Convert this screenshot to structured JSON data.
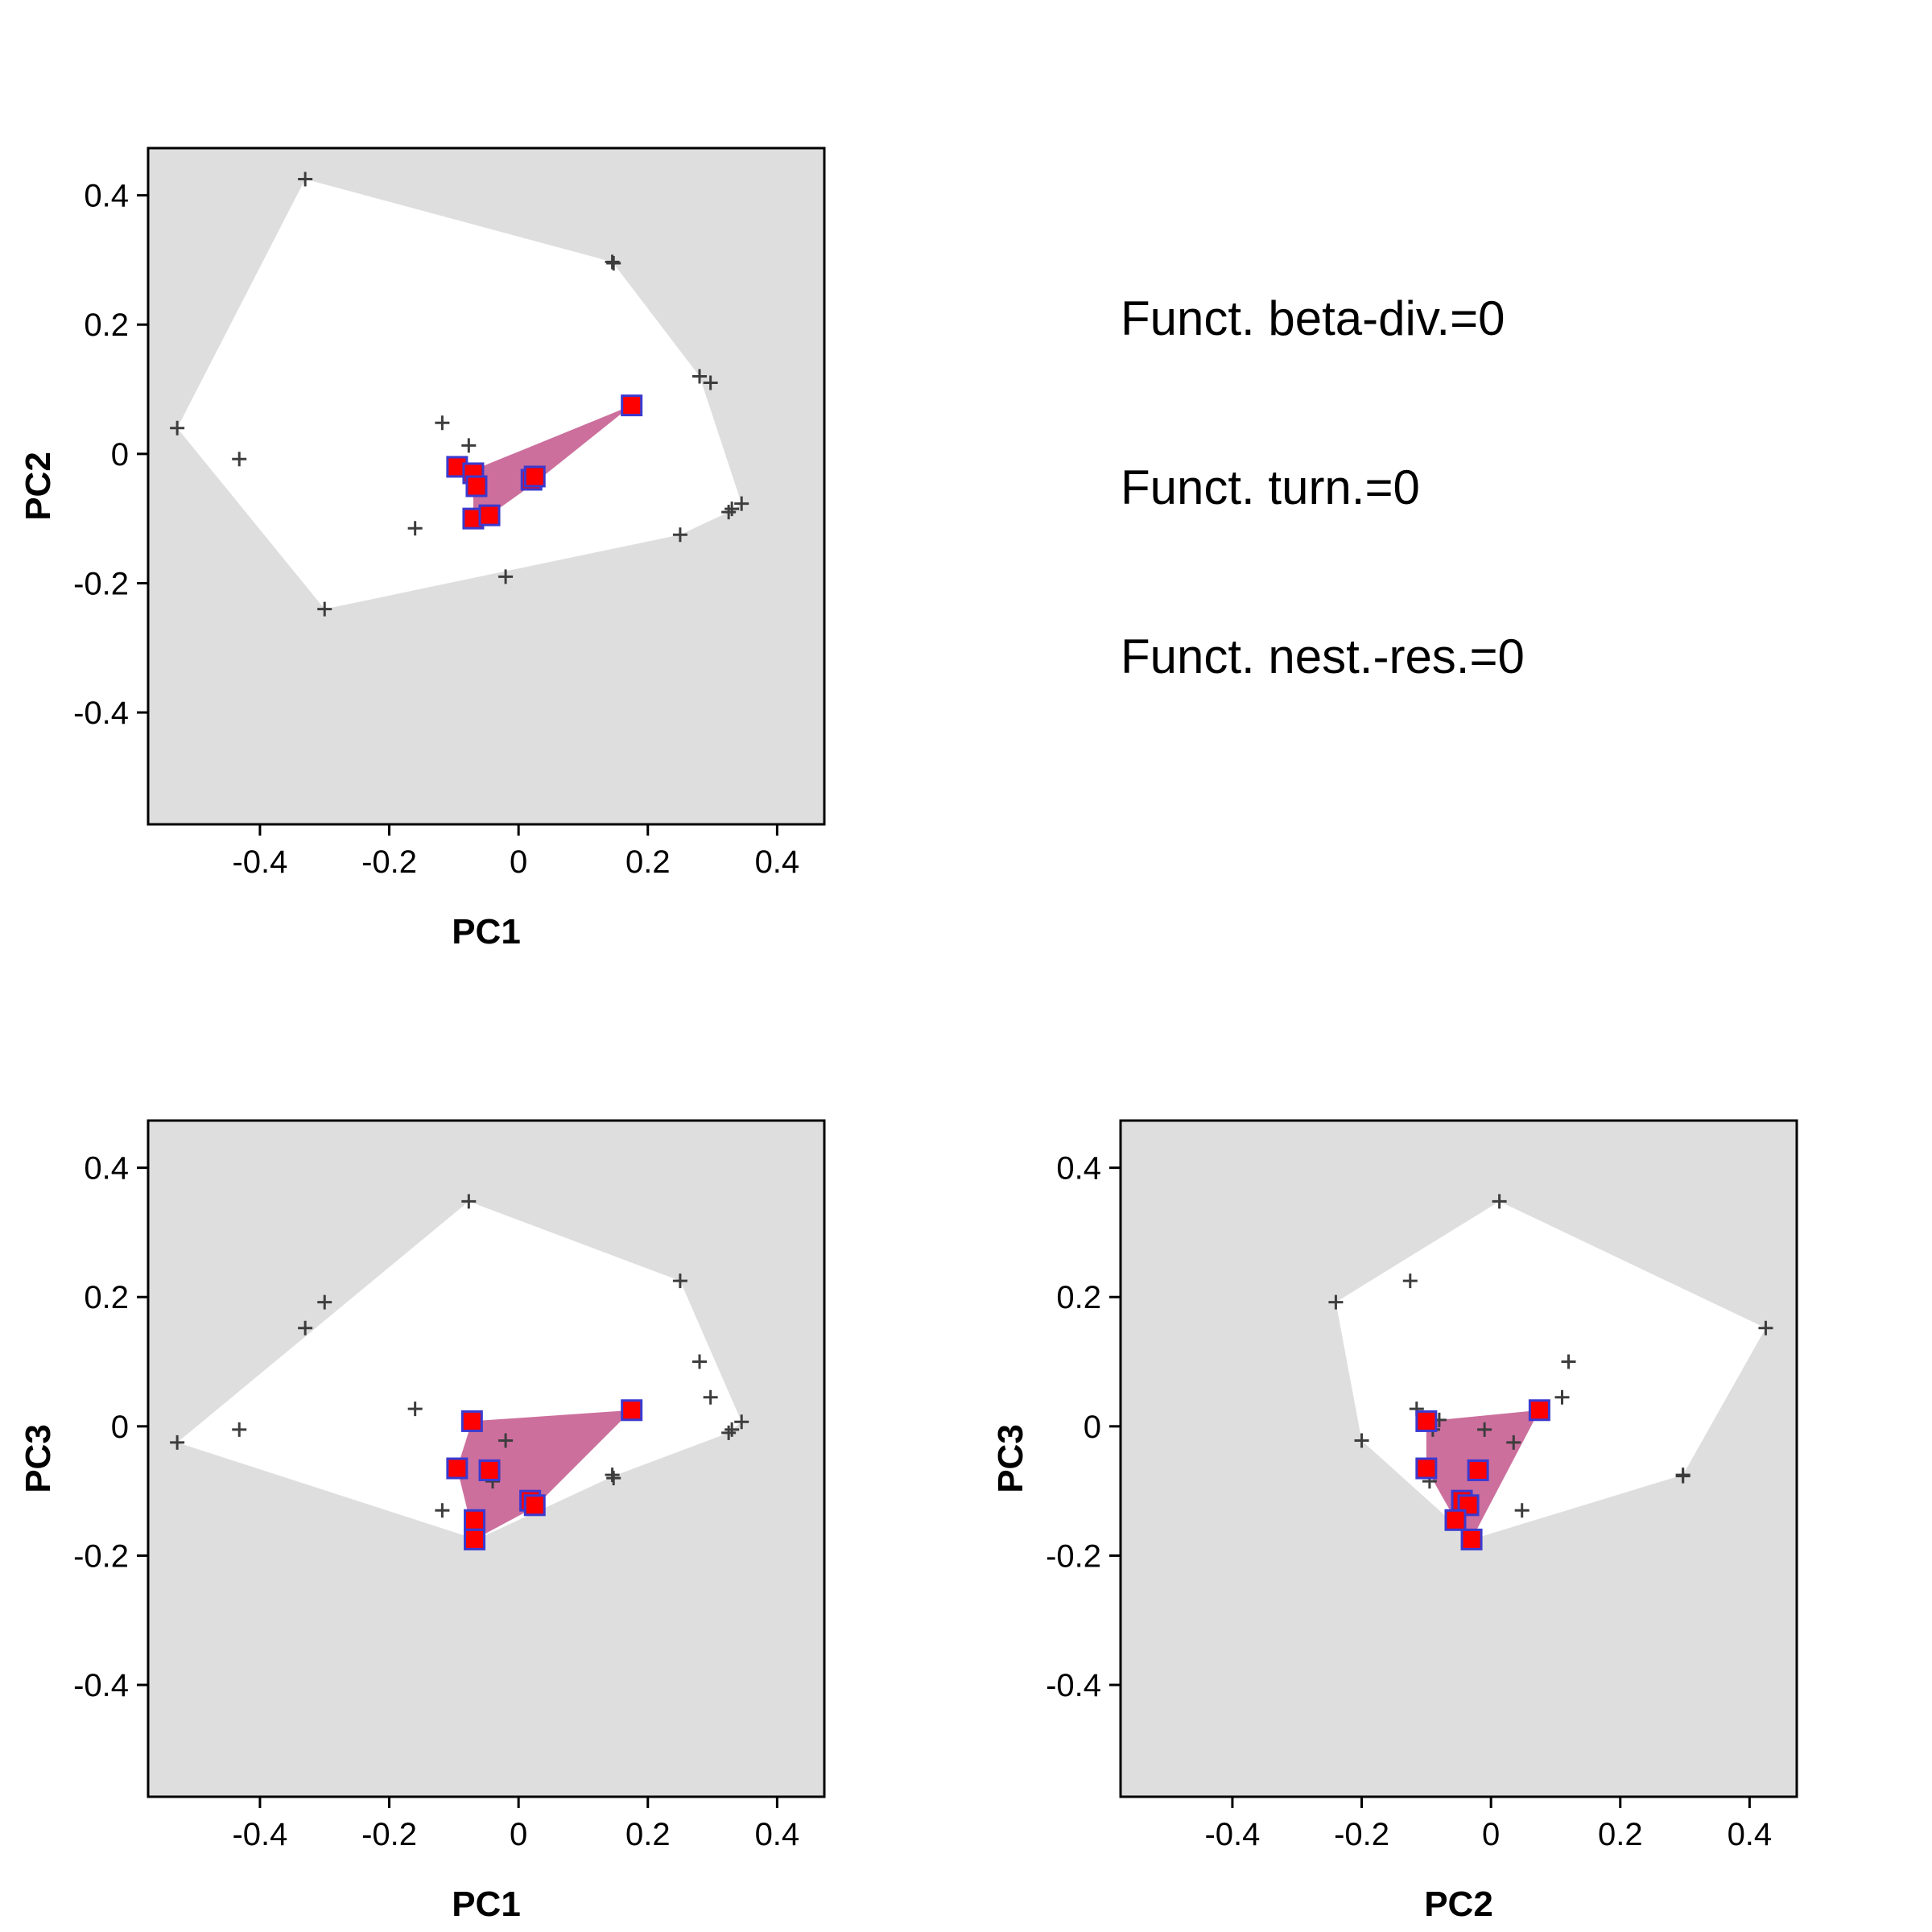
{
  "colors": {
    "panel_bg": "#dedede",
    "global_hull": "#ffffff",
    "local_hull": "#cc6f9d",
    "species_marker": "#3d3d3d",
    "highlight_fill": "#ff0000",
    "highlight_border": "#3a3ad0"
  },
  "stats": {
    "beta": "Funct. beta-div.=0",
    "turn": "Funct. turn.=0",
    "nest": "Funct. nest.-res.=0"
  },
  "chart_data": [
    {
      "type": "scatter",
      "panel": "pc1-pc2",
      "xlabel": "PC1",
      "ylabel": "PC2",
      "xlim": [
        -0.573,
        0.473
      ],
      "ylim": [
        -0.573,
        0.473
      ],
      "xticks": [
        -0.4,
        -0.2,
        0,
        0.2,
        0.4
      ],
      "yticks": [
        0.4,
        0.2,
        0,
        -0.2,
        -0.4
      ],
      "xtick_labels": [
        "-0.4",
        "-0.2",
        "0",
        "0.2",
        "0.4"
      ],
      "ytick_labels": [
        "0.4",
        "0.2",
        "0",
        "-0.2",
        "-0.4"
      ],
      "global_hull": [
        [
          -0.33,
          0.425
        ],
        [
          0.145,
          0.297
        ],
        [
          0.28,
          0.12
        ],
        [
          0.345,
          -0.077
        ],
        [
          0.325,
          -0.09
        ],
        [
          0.25,
          -0.125
        ],
        [
          -0.3,
          -0.24
        ],
        [
          -0.528,
          0.04
        ]
      ],
      "species": [
        [
          -0.33,
          0.425
        ],
        [
          0.145,
          0.297
        ],
        [
          0.147,
          0.295
        ],
        [
          0.28,
          0.12
        ],
        [
          0.297,
          0.11
        ],
        [
          -0.528,
          0.04
        ],
        [
          -0.432,
          -0.008
        ],
        [
          -0.118,
          0.048
        ],
        [
          -0.077,
          0.013
        ],
        [
          0.345,
          -0.077
        ],
        [
          0.33,
          -0.085
        ],
        [
          0.325,
          -0.09
        ],
        [
          0.25,
          -0.125
        ],
        [
          -0.16,
          -0.115
        ],
        [
          -0.02,
          -0.19
        ],
        [
          -0.3,
          -0.24
        ]
      ],
      "local_hull": [
        [
          0.175,
          0.075
        ],
        [
          -0.07,
          -0.025
        ],
        [
          -0.07,
          -0.1
        ],
        [
          -0.045,
          -0.095
        ],
        [
          0.025,
          -0.045
        ]
      ],
      "highlighted": [
        [
          0.175,
          0.075
        ],
        [
          -0.095,
          -0.02
        ],
        [
          -0.07,
          -0.03
        ],
        [
          -0.065,
          -0.05
        ],
        [
          -0.07,
          -0.1
        ],
        [
          -0.045,
          -0.095
        ],
        [
          0.02,
          -0.04
        ],
        [
          0.025,
          -0.035
        ]
      ]
    },
    {
      "type": "scatter",
      "panel": "pc1-pc3",
      "xlabel": "PC1",
      "ylabel": "PC3",
      "xlim": [
        -0.573,
        0.473
      ],
      "ylim": [
        -0.573,
        0.473
      ],
      "xticks": [
        -0.4,
        -0.2,
        0,
        0.2,
        0.4
      ],
      "yticks": [
        0.4,
        0.2,
        0,
        -0.2,
        -0.4
      ],
      "xtick_labels": [
        "-0.4",
        "-0.2",
        "0",
        "0.2",
        "0.4"
      ],
      "ytick_labels": [
        "0.4",
        "0.2",
        "0",
        "-0.2",
        "-0.4"
      ],
      "global_hull": [
        [
          -0.077,
          0.348
        ],
        [
          0.25,
          0.225
        ],
        [
          0.345,
          0.007
        ],
        [
          0.325,
          -0.01
        ],
        [
          0.147,
          -0.077
        ],
        [
          -0.065,
          -0.175
        ],
        [
          -0.528,
          -0.025
        ]
      ],
      "species": [
        [
          -0.077,
          0.348
        ],
        [
          0.25,
          0.225
        ],
        [
          -0.3,
          0.192
        ],
        [
          -0.33,
          0.152
        ],
        [
          0.28,
          0.1
        ],
        [
          0.297,
          0.045
        ],
        [
          -0.16,
          0.027
        ],
        [
          0.345,
          0.007
        ],
        [
          -0.432,
          -0.005
        ],
        [
          0.33,
          -0.005
        ],
        [
          0.325,
          -0.01
        ],
        [
          -0.02,
          -0.022
        ],
        [
          -0.528,
          -0.025
        ],
        [
          -0.04,
          -0.085
        ],
        [
          0.145,
          -0.075
        ],
        [
          0.147,
          -0.08
        ],
        [
          -0.118,
          -0.13
        ],
        [
          -0.065,
          -0.175
        ]
      ],
      "local_hull": [
        [
          0.175,
          0.025
        ],
        [
          -0.072,
          0.008
        ],
        [
          -0.095,
          -0.065
        ],
        [
          -0.068,
          -0.175
        ],
        [
          0.025,
          -0.125
        ]
      ],
      "highlighted": [
        [
          0.175,
          0.025
        ],
        [
          -0.072,
          0.008
        ],
        [
          -0.095,
          -0.065
        ],
        [
          -0.045,
          -0.068
        ],
        [
          0.018,
          -0.115
        ],
        [
          0.025,
          -0.122
        ],
        [
          -0.068,
          -0.145
        ],
        [
          -0.068,
          -0.175
        ]
      ]
    },
    {
      "type": "scatter",
      "panel": "pc2-pc3",
      "xlabel": "PC2",
      "ylabel": "PC3",
      "xlim": [
        -0.573,
        0.473
      ],
      "ylim": [
        -0.573,
        0.473
      ],
      "xticks": [
        -0.4,
        -0.2,
        0,
        0.2,
        0.4
      ],
      "yticks": [
        0.4,
        0.2,
        0,
        -0.2,
        -0.4
      ],
      "xtick_labels": [
        "-0.4",
        "-0.2",
        "0",
        "0.2",
        "0.4"
      ],
      "ytick_labels": [
        "0.4",
        "0.2",
        "0",
        "-0.2",
        "-0.4"
      ],
      "global_hull": [
        [
          0.013,
          0.348
        ],
        [
          0.425,
          0.152
        ],
        [
          0.297,
          -0.075
        ],
        [
          -0.03,
          -0.175
        ],
        [
          -0.2,
          -0.022
        ],
        [
          -0.24,
          0.192
        ]
      ],
      "species": [
        [
          0.013,
          0.348
        ],
        [
          -0.125,
          0.225
        ],
        [
          -0.24,
          0.192
        ],
        [
          0.425,
          0.152
        ],
        [
          0.12,
          0.1
        ],
        [
          0.11,
          0.045
        ],
        [
          -0.115,
          0.027
        ],
        [
          -0.08,
          0.01
        ],
        [
          -0.09,
          -0.005
        ],
        [
          -0.01,
          -0.005
        ],
        [
          -0.2,
          -0.022
        ],
        [
          0.035,
          -0.025
        ],
        [
          0.297,
          -0.075
        ],
        [
          0.297,
          -0.077
        ],
        [
          -0.095,
          -0.085
        ],
        [
          0.048,
          -0.13
        ]
      ],
      "local_hull": [
        [
          0.075,
          0.025
        ],
        [
          -0.1,
          0.008
        ],
        [
          -0.1,
          -0.065
        ],
        [
          -0.055,
          -0.145
        ],
        [
          -0.03,
          -0.175
        ]
      ],
      "highlighted": [
        [
          0.075,
          0.025
        ],
        [
          -0.1,
          0.008
        ],
        [
          -0.1,
          -0.065
        ],
        [
          -0.02,
          -0.068
        ],
        [
          -0.045,
          -0.115
        ],
        [
          -0.035,
          -0.122
        ],
        [
          -0.055,
          -0.145
        ],
        [
          -0.03,
          -0.175
        ]
      ]
    }
  ]
}
